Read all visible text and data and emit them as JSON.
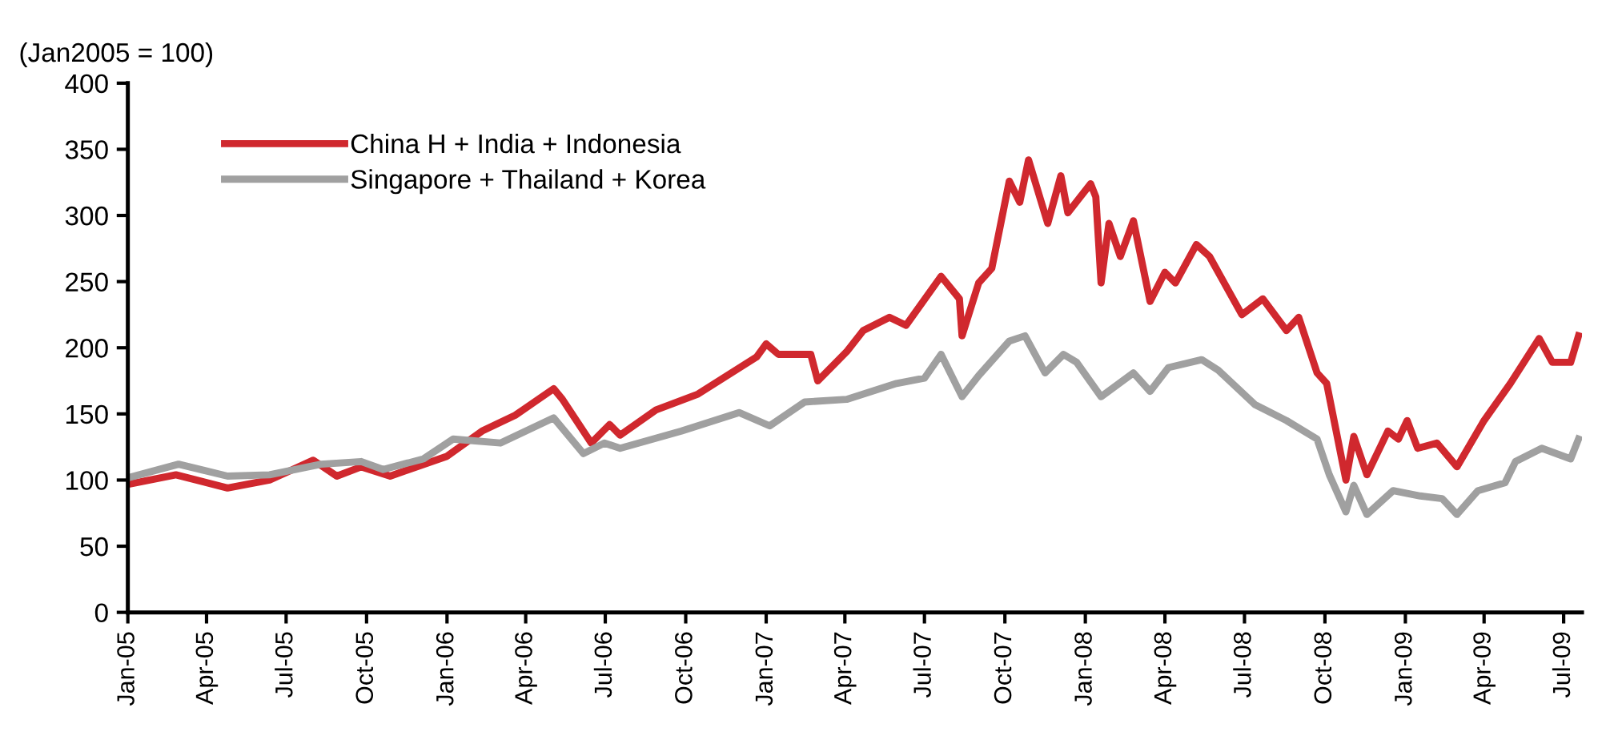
{
  "chart_data": {
    "type": "line",
    "ylabel": "(Jan2005 = 100)",
    "xlim": [
      "2005-01-01",
      "2009-07-22"
    ],
    "ylim": [
      0,
      400
    ],
    "yticks": [
      0,
      50,
      100,
      150,
      200,
      250,
      300,
      350,
      400
    ],
    "xticks": [
      {
        "value": "2005-01-01",
        "label": "Jan-05"
      },
      {
        "value": "2005-04-01",
        "label": "Apr-05"
      },
      {
        "value": "2005-07-01",
        "label": "Jul-05"
      },
      {
        "value": "2005-10-01",
        "label": "Oct-05"
      },
      {
        "value": "2006-01-01",
        "label": "Jan-06"
      },
      {
        "value": "2006-04-01",
        "label": "Apr-06"
      },
      {
        "value": "2006-07-01",
        "label": "Jul-06"
      },
      {
        "value": "2006-10-01",
        "label": "Oct-06"
      },
      {
        "value": "2007-01-01",
        "label": "Jan-07"
      },
      {
        "value": "2007-04-01",
        "label": "Apr-07"
      },
      {
        "value": "2007-07-01",
        "label": "Jul-07"
      },
      {
        "value": "2007-10-01",
        "label": "Oct-07"
      },
      {
        "value": "2008-01-01",
        "label": "Jan-08"
      },
      {
        "value": "2008-04-01",
        "label": "Apr-08"
      },
      {
        "value": "2008-07-01",
        "label": "Jul-08"
      },
      {
        "value": "2008-10-01",
        "label": "Oct-08"
      },
      {
        "value": "2009-01-01",
        "label": "Jan-09"
      },
      {
        "value": "2009-04-01",
        "label": "Apr-09"
      },
      {
        "value": "2009-07-01",
        "label": "Jul-09"
      }
    ],
    "grid": false,
    "legend": "top left",
    "marker": "none",
    "line_style": "solid",
    "series": [
      {
        "name": "China H + India + Indonesia",
        "color": "#d0282e",
        "x": [
          "2005-01-03",
          "2005-02-25",
          "2005-04-25",
          "2005-06-12",
          "2005-08-01",
          "2005-08-28",
          "2005-09-25",
          "2005-10-28",
          "2006-01-01",
          "2006-02-10",
          "2006-03-20",
          "2006-05-03",
          "2006-05-13",
          "2006-06-15",
          "2006-07-06",
          "2006-07-18",
          "2006-08-28",
          "2006-10-15",
          "2006-12-21",
          "2007-01-01",
          "2007-01-15",
          "2007-02-21",
          "2007-03-01",
          "2007-04-03",
          "2007-04-22",
          "2007-05-22",
          "2007-06-10",
          "2007-07-20",
          "2007-08-10",
          "2007-08-13",
          "2007-09-01",
          "2007-09-16",
          "2007-10-06",
          "2007-10-18",
          "2007-10-28",
          "2007-11-19",
          "2007-12-04",
          "2007-12-12",
          "2008-01-07",
          "2008-01-13",
          "2008-01-19",
          "2008-01-28",
          "2008-02-10",
          "2008-02-25",
          "2008-03-15",
          "2008-04-01",
          "2008-04-13",
          "2008-05-07",
          "2008-05-22",
          "2008-06-28",
          "2008-07-22",
          "2008-08-18",
          "2008-09-01",
          "2008-09-22",
          "2008-10-03",
          "2008-10-25",
          "2008-11-03",
          "2008-11-18",
          "2008-12-12",
          "2008-12-24",
          "2009-01-03",
          "2009-01-15",
          "2009-02-06",
          "2009-03-01",
          "2009-04-01",
          "2009-05-01",
          "2009-06-03",
          "2009-06-18",
          "2009-07-09",
          "2009-07-18"
        ],
        "values": [
          97,
          104,
          94,
          100,
          115,
          103,
          110,
          103,
          118,
          137,
          149,
          169,
          161,
          128,
          142,
          134,
          153,
          165,
          193,
          203,
          195,
          195,
          175,
          197,
          213,
          223,
          217,
          254,
          237,
          209,
          249,
          260,
          326,
          310,
          342,
          294,
          330,
          302,
          324,
          314,
          249,
          294,
          269,
          296,
          235,
          257,
          249,
          278,
          269,
          225,
          237,
          213,
          223,
          181,
          173,
          100,
          133,
          104,
          137,
          131,
          145,
          124,
          128,
          110,
          145,
          173,
          207,
          189,
          189,
          209
        ]
      },
      {
        "name": "Singapore + Thailand + Korea",
        "color": "#a0a0a0",
        "x": [
          "2005-01-03",
          "2005-02-28",
          "2005-04-25",
          "2005-06-12",
          "2005-08-10",
          "2005-09-25",
          "2005-10-20",
          "2005-12-05",
          "2006-01-08",
          "2006-03-03",
          "2006-05-03",
          "2006-06-06",
          "2006-06-30",
          "2006-07-18",
          "2006-09-26",
          "2006-12-01",
          "2007-01-05",
          "2007-02-14",
          "2007-04-03",
          "2007-05-30",
          "2007-07-01",
          "2007-07-20",
          "2007-08-13",
          "2007-09-01",
          "2007-10-06",
          "2007-10-24",
          "2007-11-16",
          "2007-12-07",
          "2007-12-22",
          "2008-01-19",
          "2008-02-25",
          "2008-03-15",
          "2008-04-05",
          "2008-05-13",
          "2008-06-01",
          "2008-07-13",
          "2008-08-18",
          "2008-09-22",
          "2008-10-06",
          "2008-10-25",
          "2008-11-03",
          "2008-11-18",
          "2008-12-18",
          "2009-01-18",
          "2009-02-12",
          "2009-03-01",
          "2009-03-25",
          "2009-04-25",
          "2009-05-07",
          "2009-06-06",
          "2009-07-09",
          "2009-07-18"
        ],
        "values": [
          102,
          112,
          103,
          104,
          112,
          114,
          108,
          116,
          131,
          128,
          147,
          120,
          128,
          124,
          137,
          151,
          141,
          159,
          161,
          173,
          177,
          195,
          163,
          179,
          205,
          209,
          181,
          195,
          189,
          163,
          181,
          167,
          185,
          191,
          183,
          157,
          145,
          131,
          104,
          76,
          96,
          74,
          92,
          88,
          86,
          74,
          92,
          98,
          114,
          124,
          116,
          131
        ]
      }
    ]
  }
}
